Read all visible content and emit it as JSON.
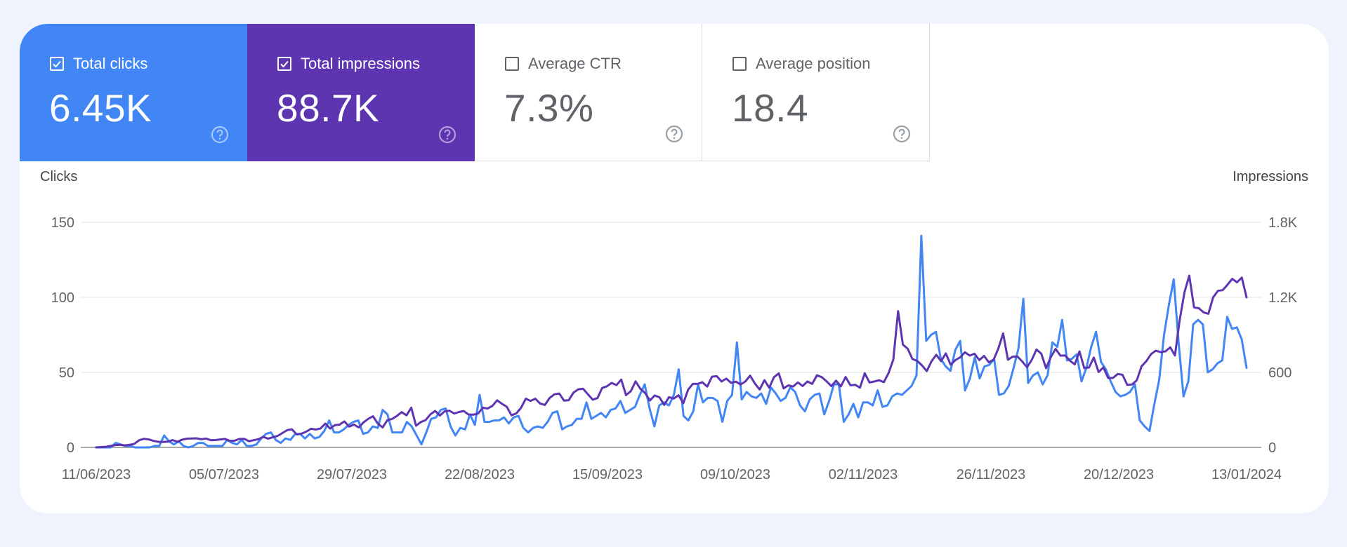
{
  "metrics": [
    {
      "label": "Total clicks",
      "value": "6.45K",
      "checked": true,
      "color": "#4285f4"
    },
    {
      "label": "Total impressions",
      "value": "88.7K",
      "checked": true,
      "color": "#5e35b1"
    },
    {
      "label": "Average CTR",
      "value": "7.3%",
      "checked": false,
      "color": "#ffffff"
    },
    {
      "label": "Average position",
      "value": "18.4",
      "checked": false,
      "color": "#ffffff"
    }
  ],
  "help_icon": "question-circle-icon",
  "chart_data": {
    "type": "line",
    "xlabel": "",
    "ylabel_left": "Clicks",
    "ylabel_right": "Impressions",
    "left_ticks": [
      "0",
      "50",
      "100",
      "150"
    ],
    "left_ylim": [
      0,
      150
    ],
    "right_ticks": [
      "0",
      "600",
      "1.2K",
      "1.8K"
    ],
    "right_ylim": [
      0,
      1800
    ],
    "x_start": "11/06/2023",
    "x_end": "13/01/2024",
    "x_ticks": [
      "11/06/2023",
      "05/07/2023",
      "29/07/2023",
      "22/08/2023",
      "15/09/2023",
      "09/10/2023",
      "02/11/2023",
      "26/11/2023",
      "20/12/2023",
      "13/01/2024"
    ],
    "grid": true,
    "series": [
      {
        "name": "Clicks",
        "axis": "left",
        "color": "#4285f4",
        "values": [
          0,
          0,
          0,
          0,
          3,
          2,
          1,
          1,
          0,
          0,
          0,
          0,
          1,
          1,
          8,
          4,
          2,
          4,
          1,
          0,
          1,
          3,
          3,
          1,
          1,
          1,
          1,
          5,
          3,
          2,
          5,
          1,
          1,
          2,
          6,
          9,
          10,
          5,
          3,
          6,
          5,
          9,
          9,
          6,
          9,
          6,
          7,
          11,
          18,
          10,
          10,
          12,
          15,
          17,
          18,
          9,
          10,
          14,
          13,
          25,
          22,
          10,
          10,
          10,
          17,
          14,
          8,
          2,
          10,
          19,
          20,
          25,
          26,
          14,
          8,
          13,
          12,
          22,
          15,
          35,
          17,
          17,
          18,
          18,
          20,
          16,
          20,
          21,
          13,
          10,
          13,
          14,
          13,
          17,
          23,
          24,
          12,
          14,
          15,
          19,
          19,
          30,
          19,
          21,
          23,
          20,
          25,
          26,
          31,
          23,
          25,
          27,
          35,
          42,
          26,
          14,
          28,
          30,
          28,
          35,
          52,
          21,
          18,
          24,
          42,
          30,
          33,
          33,
          31,
          17,
          31,
          35,
          70,
          32,
          37,
          34,
          33,
          36,
          29,
          40,
          36,
          31,
          33,
          40,
          37,
          28,
          24,
          32,
          35,
          36,
          22,
          31,
          42,
          42,
          17,
          22,
          29,
          20,
          30,
          30,
          28,
          38,
          27,
          28,
          34,
          36,
          35,
          38,
          41,
          48,
          141,
          71,
          75,
          77,
          59,
          54,
          51,
          65,
          71,
          38,
          46,
          60,
          46,
          54,
          55,
          59,
          35,
          36,
          41,
          53,
          66,
          99,
          43,
          48,
          50,
          42,
          48,
          70,
          67,
          85,
          58,
          59,
          62,
          44,
          53,
          67,
          77,
          57,
          52,
          44,
          37,
          34,
          35,
          37,
          42,
          18,
          14,
          11,
          29,
          45,
          75,
          95,
          112,
          70,
          34,
          44,
          82,
          85,
          82,
          50,
          52,
          56,
          58,
          87,
          79,
          80,
          72,
          53
        ]
      },
      {
        "name": "Impressions",
        "axis": "right",
        "color": "#5e35b1",
        "values": [
          0,
          3,
          5,
          12,
          19,
          21,
          16,
          21,
          29,
          58,
          69,
          64,
          52,
          45,
          43,
          46,
          59,
          45,
          62,
          70,
          71,
          73,
          65,
          71,
          58,
          59,
          64,
          68,
          52,
          54,
          68,
          69,
          50,
          58,
          66,
          84,
          70,
          81,
          92,
          115,
          138,
          145,
          104,
          110,
          126,
          149,
          143,
          152,
          190,
          151,
          178,
          182,
          208,
          166,
          182,
          160,
          200,
          229,
          249,
          190,
          160,
          218,
          228,
          252,
          282,
          256,
          318,
          173,
          203,
          218,
          264,
          292,
          255,
          289,
          294,
          271,
          283,
          291,
          263,
          262,
          271,
          317,
          311,
          332,
          376,
          349,
          326,
          257,
          272,
          316,
          390,
          372,
          390,
          351,
          340,
          396,
          425,
          431,
          374,
          378,
          439,
          465,
          469,
          425,
          382,
          394,
          475,
          489,
          516,
          498,
          542,
          418,
          450,
          528,
          469,
          435,
          375,
          415,
          401,
          340,
          402,
          391,
          417,
          353,
          462,
          508,
          508,
          521,
          486,
          566,
          570,
          527,
          550,
          516,
          526,
          503,
          527,
          574,
          511,
          463,
          538,
          477,
          562,
          592,
          472,
          496,
          487,
          520,
          491,
          527,
          508,
          577,
          562,
          529,
          490,
          533,
          488,
          563,
          497,
          501,
          478,
          593,
          519,
          527,
          537,
          522,
          594,
          702,
          1090,
          822,
          790,
          707,
          692,
          656,
          610,
          689,
          741,
          690,
          752,
          661,
          698,
          720,
          761,
          734,
          749,
          698,
          732,
          681,
          701,
          792,
          911,
          701,
          726,
          727,
          687,
          641,
          700,
          783,
          749,
          633,
          723,
          788,
          734,
          735,
          693,
          664,
          767,
          634,
          639,
          719,
          603,
          640,
          555,
          555,
          587,
          581,
          500,
          503,
          537,
          649,
          690,
          747,
          774,
          762,
          768,
          800,
          735,
          1020,
          1241,
          1374,
          1120,
          1113,
          1080,
          1069,
          1200,
          1252,
          1258,
          1301,
          1348,
          1320,
          1358,
          1200
        ]
      }
    ]
  }
}
